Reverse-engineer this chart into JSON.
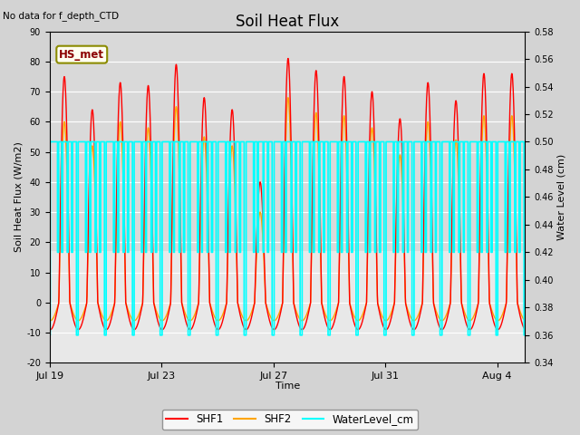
{
  "title": "Soil Heat Flux",
  "subtitle": "No data for f_depth_CTD",
  "xlabel": "Time",
  "ylabel_left": "Soil Heat Flux (W/m2)",
  "ylabel_right": "Water Level (cm)",
  "ylim_left": [
    -20,
    90
  ],
  "ylim_right": [
    0.34,
    0.58
  ],
  "yticks_left": [
    -20,
    -10,
    0,
    10,
    20,
    30,
    40,
    50,
    60,
    70,
    80,
    90
  ],
  "yticks_right": [
    0.34,
    0.36,
    0.38,
    0.4,
    0.42,
    0.44,
    0.46,
    0.48,
    0.5,
    0.52,
    0.54,
    0.56,
    0.58
  ],
  "xtick_pos": [
    0,
    4,
    8,
    12,
    16
  ],
  "xtick_labels": [
    "Jul 19",
    "Jul 23",
    "Jul 27",
    "Jul 31",
    "Aug 4"
  ],
  "shf1_color": "#FF0000",
  "shf2_color": "#FFA500",
  "water_color": "#00FFFF",
  "bg_color": "#D3D3D3",
  "plot_bg_color": "#E8E8E8",
  "gray_band_color": "#C0C0C0",
  "hs_met_box_color": "#FFFFF0",
  "hs_met_text_color": "#8B0000",
  "hs_met_border_color": "#8B8B00",
  "legend_shf1": "SHF1",
  "legend_shf2": "SHF2",
  "legend_water": "WaterLevel_cm",
  "total_days": 17,
  "peak_heights_shf1": [
    75,
    64,
    73,
    72,
    79,
    68,
    64,
    40,
    81,
    77,
    75,
    70,
    61,
    73,
    67,
    76,
    76
  ],
  "peak_heights_shf2": [
    60,
    52,
    60,
    58,
    65,
    55,
    52,
    30,
    68,
    63,
    62,
    58,
    49,
    60,
    54,
    62,
    62
  ],
  "water_high": 0.5,
  "water_mid": 0.42,
  "water_low": 0.36,
  "shaded_band_ymin": 17,
  "shaded_band_ymax": 90
}
